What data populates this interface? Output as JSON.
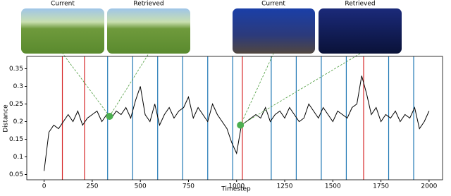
{
  "chart_data": {
    "type": "line",
    "xlabel": "Timestep",
    "ylabel": "Distance",
    "xlim": [
      -90,
      2070
    ],
    "ylim": [
      0.035,
      0.385
    ],
    "xticks": [
      0,
      250,
      500,
      750,
      1000,
      1250,
      1500,
      1750,
      2000
    ],
    "yticks": [
      0.05,
      0.1,
      0.15,
      0.2,
      0.25,
      0.3,
      0.35
    ],
    "x": [
      0,
      25,
      50,
      75,
      100,
      125,
      150,
      175,
      200,
      225,
      250,
      275,
      300,
      325,
      350,
      375,
      400,
      425,
      450,
      475,
      500,
      525,
      550,
      575,
      600,
      625,
      650,
      675,
      700,
      725,
      750,
      775,
      800,
      825,
      850,
      875,
      900,
      925,
      950,
      975,
      1000,
      1025,
      1050,
      1075,
      1100,
      1125,
      1150,
      1175,
      1200,
      1225,
      1250,
      1275,
      1300,
      1325,
      1350,
      1375,
      1400,
      1425,
      1450,
      1475,
      1500,
      1525,
      1550,
      1575,
      1600,
      1625,
      1650,
      1675,
      1700,
      1725,
      1750,
      1775,
      1800,
      1825,
      1850,
      1875,
      1900,
      1925,
      1950,
      1975,
      2000
    ],
    "series": [
      {
        "color": "#000000",
        "values": [
          0.06,
          0.17,
          0.19,
          0.18,
          0.2,
          0.22,
          0.2,
          0.23,
          0.19,
          0.21,
          0.22,
          0.23,
          0.2,
          0.22,
          0.21,
          0.23,
          0.22,
          0.24,
          0.21,
          0.26,
          0.3,
          0.22,
          0.2,
          0.25,
          0.19,
          0.22,
          0.24,
          0.21,
          0.23,
          0.24,
          0.27,
          0.21,
          0.24,
          0.22,
          0.2,
          0.25,
          0.22,
          0.2,
          0.18,
          0.14,
          0.11,
          0.19,
          0.2,
          0.21,
          0.22,
          0.21,
          0.24,
          0.2,
          0.22,
          0.23,
          0.21,
          0.24,
          0.22,
          0.2,
          0.21,
          0.25,
          0.23,
          0.21,
          0.24,
          0.22,
          0.2,
          0.23,
          0.22,
          0.21,
          0.24,
          0.25,
          0.33,
          0.28,
          0.22,
          0.24,
          0.2,
          0.22,
          0.21,
          0.23,
          0.2,
          0.22,
          0.21,
          0.24,
          0.18,
          0.2,
          0.23
        ]
      }
    ],
    "vlines": [
      {
        "x": 95,
        "color": "#d62728"
      },
      {
        "x": 210,
        "color": "#d62728"
      },
      {
        "x": 330,
        "color": "#1f77b4"
      },
      {
        "x": 460,
        "color": "#1f77b4"
      },
      {
        "x": 590,
        "color": "#1f77b4"
      },
      {
        "x": 720,
        "color": "#1f77b4"
      },
      {
        "x": 850,
        "color": "#1f77b4"
      },
      {
        "x": 980,
        "color": "#1f77b4"
      },
      {
        "x": 1030,
        "color": "#d62728"
      },
      {
        "x": 1180,
        "color": "#1f77b4"
      },
      {
        "x": 1310,
        "color": "#1f77b4"
      },
      {
        "x": 1440,
        "color": "#1f77b4"
      },
      {
        "x": 1570,
        "color": "#1f77b4"
      },
      {
        "x": 1660,
        "color": "#d62728"
      },
      {
        "x": 1790,
        "color": "#1f77b4"
      },
      {
        "x": 1920,
        "color": "#1f77b4"
      }
    ],
    "markers": [
      {
        "x": 340,
        "y": 0.215,
        "color": "#4caf50"
      },
      {
        "x": 1020,
        "y": 0.19,
        "color": "#4caf50"
      }
    ],
    "images": [
      {
        "caption": "Current"
      },
      {
        "caption": "Retrieved"
      },
      {
        "caption": "Current"
      },
      {
        "caption": "Retrieved"
      }
    ]
  }
}
